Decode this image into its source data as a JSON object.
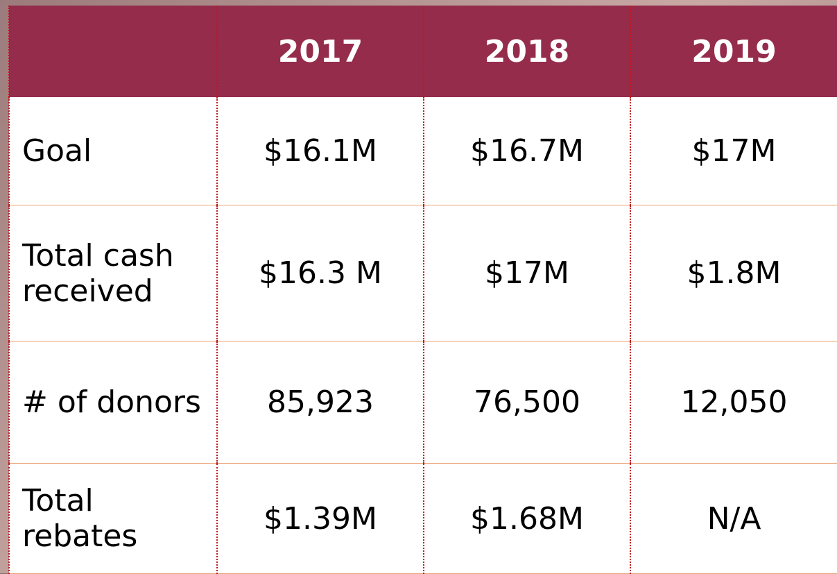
{
  "table": {
    "header": [
      "",
      "2017",
      "2018",
      "2019"
    ],
    "rows": [
      [
        "Goal",
        "$16.1M",
        "$16.7M",
        "$17M"
      ],
      [
        "Total cash received",
        "$16.3 M",
        "$17M",
        "$1.8M"
      ],
      [
        "# of donors",
        "85,923",
        "76,500",
        "12,050"
      ],
      [
        "Total rebates",
        "$1.39M",
        "$1.68M",
        "N/A"
      ]
    ]
  }
}
